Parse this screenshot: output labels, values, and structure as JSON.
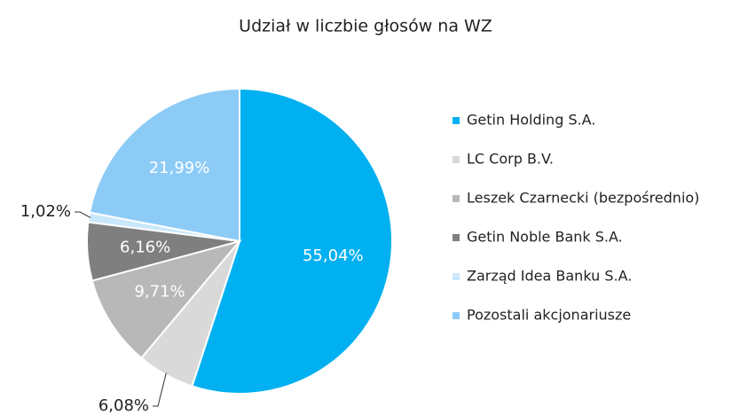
{
  "chart_data": {
    "type": "pie",
    "title": "Udział w liczbie głosów na WZ",
    "categories": [
      "Getin Holding S.A.",
      "LC Corp B.V.",
      "Leszek Czarnecki (bezpośrednio)",
      "Getin Noble Bank S.A.",
      "Zarząd Idea Banku S.A.",
      "Pozostali akcjonariusze"
    ],
    "values": [
      55.04,
      6.08,
      9.71,
      6.16,
      1.02,
      21.99
    ],
    "value_labels": [
      "55,04%",
      "6,08%",
      "9,71%",
      "6,16%",
      "1,02%",
      "21,99%"
    ],
    "colors": [
      "#00b0f0",
      "#d9d9d9",
      "#b8b8b8",
      "#7f7f7f",
      "#c9e8fb",
      "#8dcbf7"
    ],
    "legend": "right"
  }
}
